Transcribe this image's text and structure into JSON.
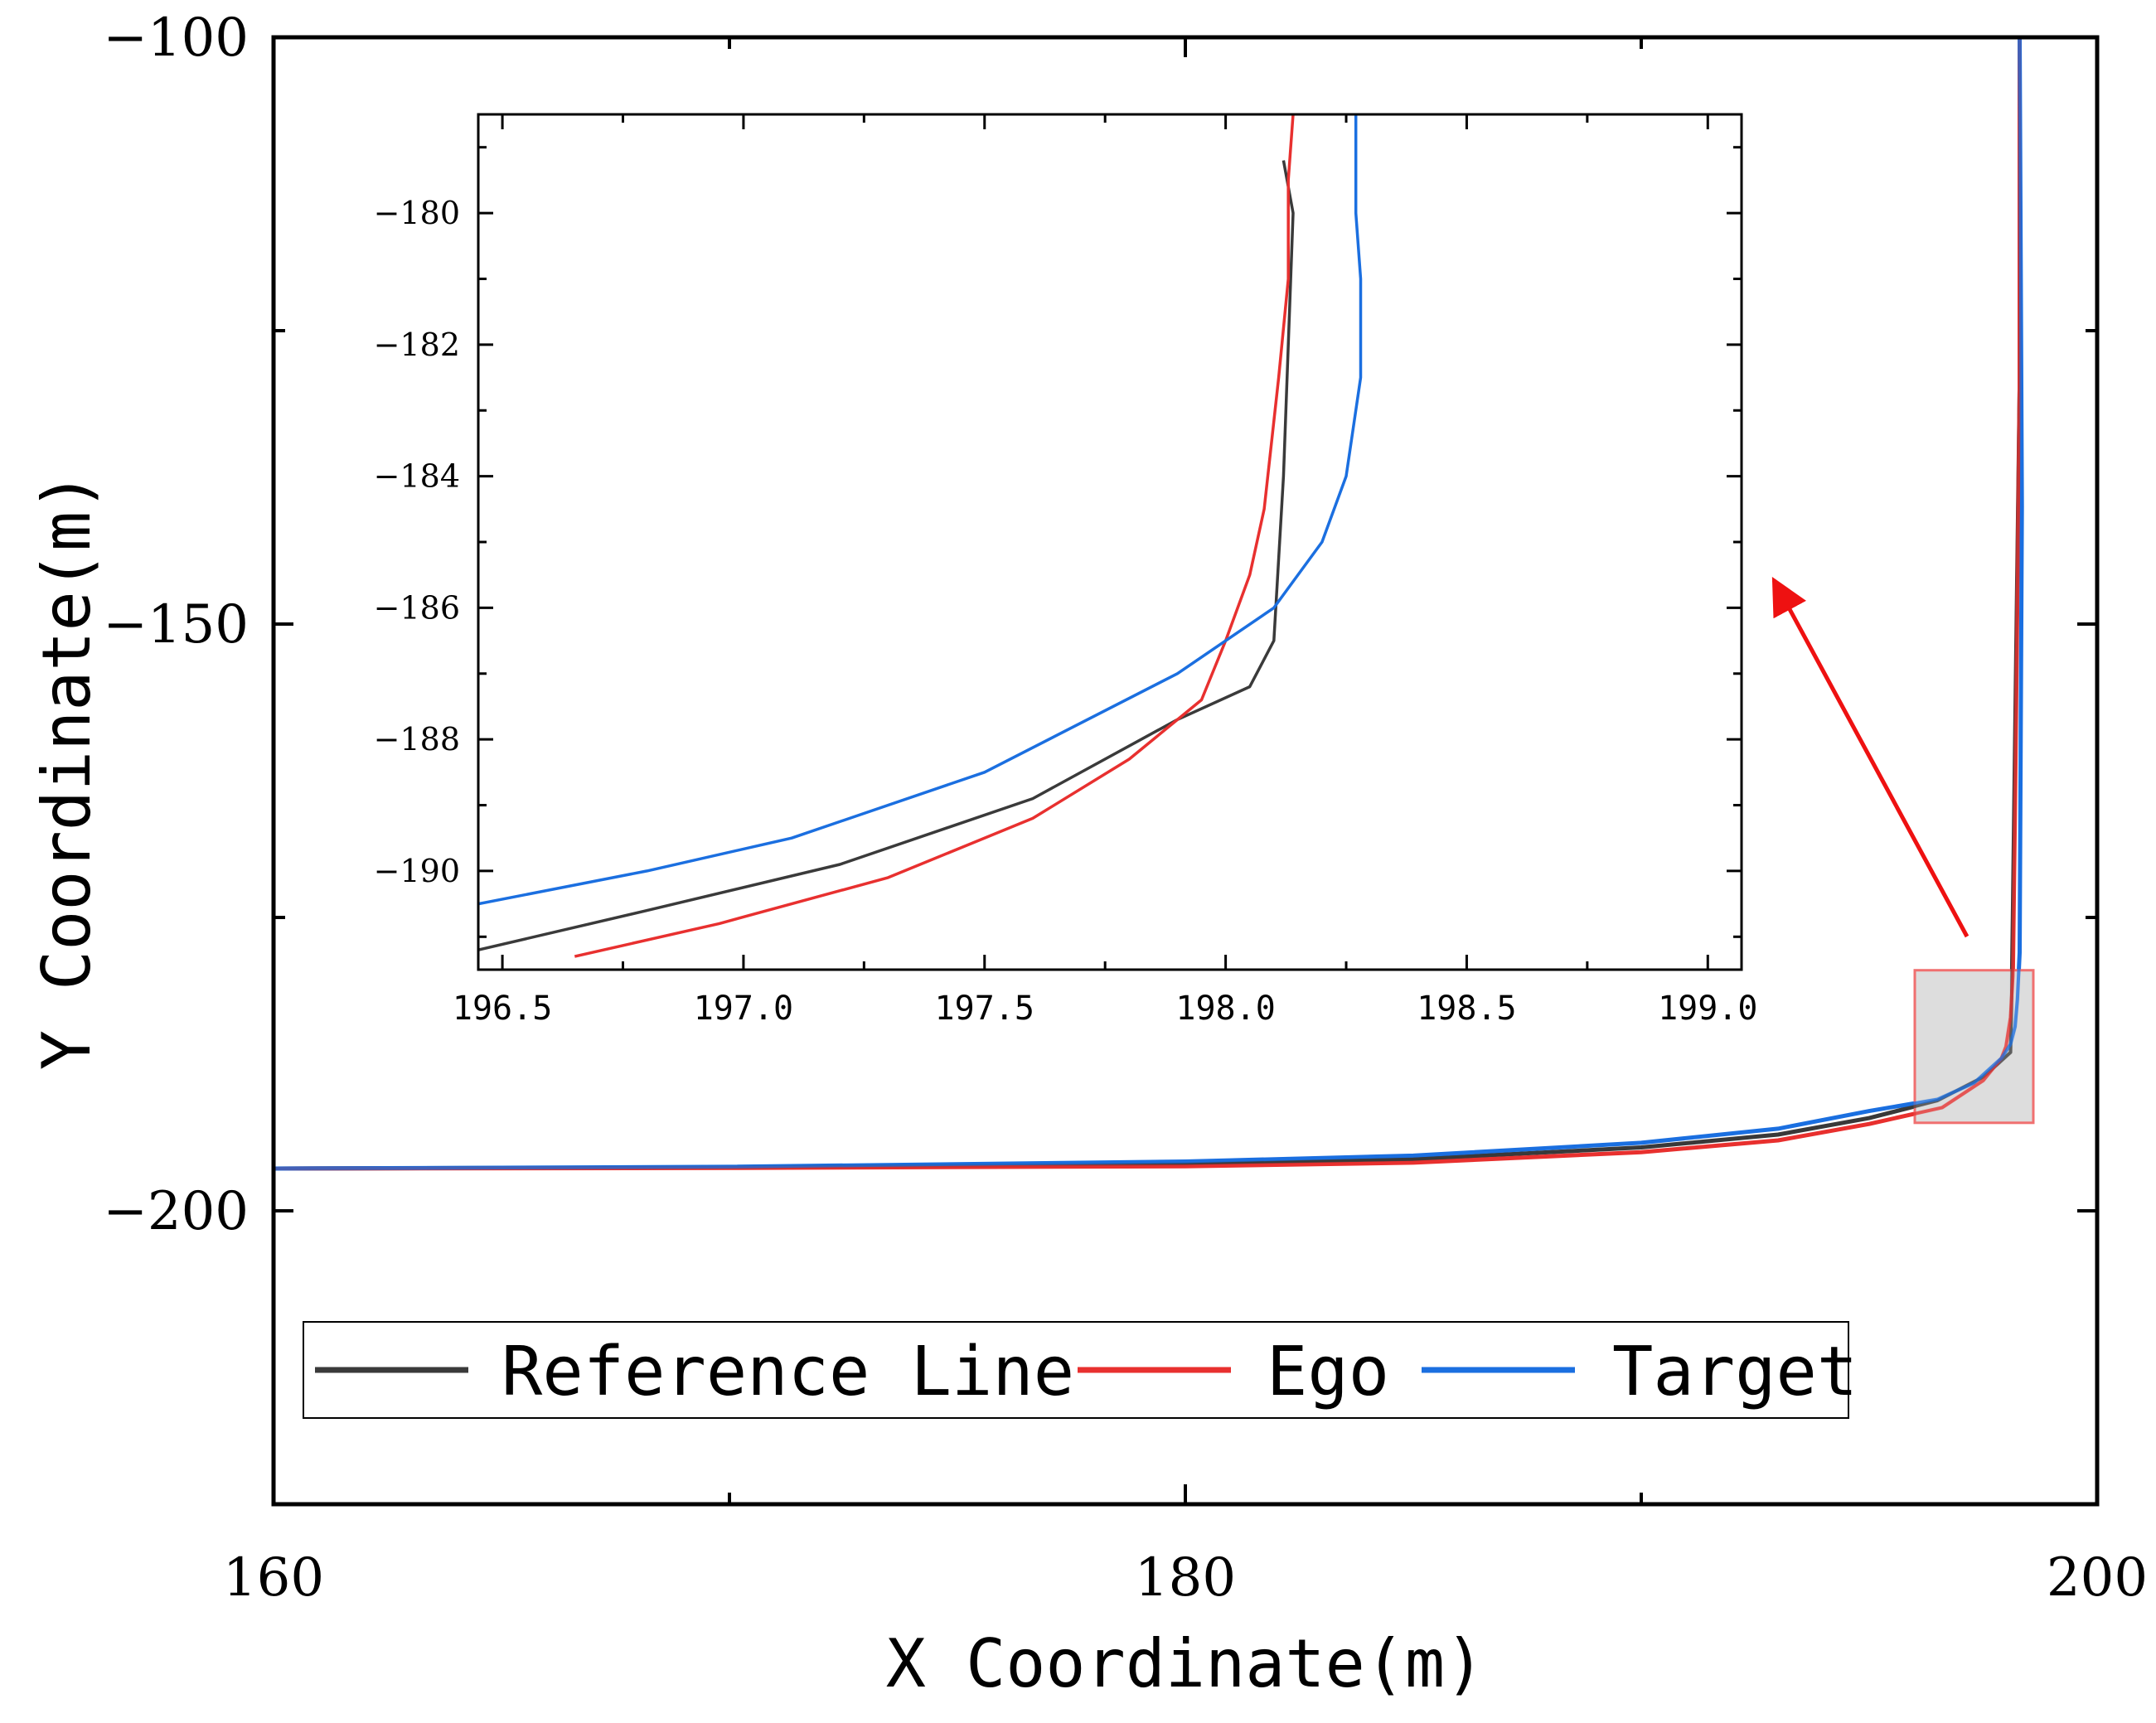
{
  "chart_data": [
    {
      "id": "main",
      "type": "line",
      "xlabel": "X Coordinate(m)",
      "ylabel": "Y Coordinate(m)",
      "xlim": [
        160,
        200
      ],
      "ylim": [
        -225,
        -100
      ],
      "xticks": [
        160,
        180,
        200
      ],
      "xticks_minor": [
        170,
        190
      ],
      "yticks": [
        -100,
        -150,
        -200
      ],
      "yticks_minor": [
        -125,
        -175
      ],
      "legend": {
        "placement": "lower-left",
        "entries": [
          "Reference Line",
          "Ego",
          "Target"
        ]
      },
      "series": [
        {
          "name": "Reference Line",
          "color": "#3a3a3a",
          "x": [
            160,
            170,
            180,
            185,
            190,
            193,
            195,
            196.5,
            197.5,
            197.9,
            198.1,
            198.13,
            198.15,
            198.2,
            198.3,
            198.3
          ],
          "y": [
            -196.4,
            -196.3,
            -196.0,
            -195.6,
            -194.6,
            -193.5,
            -192.1,
            -190.6,
            -188.6,
            -187.2,
            -186.5,
            -181,
            -175,
            -160,
            -130,
            -100
          ]
        },
        {
          "name": "Ego",
          "color": "#e8302f",
          "x": [
            160,
            170,
            180,
            185,
            190,
            193,
            195,
            196.6,
            197.5,
            197.9,
            198.0,
            198.1,
            198.15,
            198.2,
            198.3,
            198.3
          ],
          "y": [
            -196.4,
            -196.35,
            -196.2,
            -195.9,
            -195.0,
            -194.0,
            -192.6,
            -191.2,
            -188.9,
            -187.0,
            -186.0,
            -183.5,
            -180,
            -165,
            -130,
            -100
          ]
        },
        {
          "name": "Target",
          "color": "#1b6fe0",
          "x": [
            160,
            170,
            180,
            185,
            190,
            193,
            195,
            196.5,
            197.3,
            197.9,
            198.1,
            198.2,
            198.25,
            198.3,
            198.35,
            198.3
          ],
          "y": [
            -196.4,
            -196.25,
            -195.8,
            -195.3,
            -194.2,
            -193.0,
            -191.5,
            -190.5,
            -189.1,
            -187.0,
            -185.8,
            -184.3,
            -182,
            -178,
            -140,
            -100
          ]
        }
      ],
      "zoom_region": {
        "xlim": [
          196,
          198.6
        ],
        "ylim": [
          -192.5,
          -179.5
        ],
        "fill": "#d9d9d9",
        "stroke": "#f07070"
      },
      "annotation": {
        "type": "arrow",
        "color": "#ee1111",
        "from": "zoom-region",
        "to": "inset"
      }
    },
    {
      "id": "inset",
      "type": "line",
      "xlim": [
        196.45,
        199.07
      ],
      "ylim": [
        -191.5,
        -178.5
      ],
      "xticks": [
        196.5,
        197.0,
        197.5,
        198.0,
        198.5,
        199.0
      ],
      "xtick_labels": [
        "196.5",
        "197.0",
        "197.5",
        "198.0",
        "198.5",
        "199.0"
      ],
      "yticks": [
        -180,
        -182,
        -184,
        -186,
        -188,
        -190
      ],
      "series": [
        {
          "name": "Reference Line",
          "color": "#3a3a3a",
          "x": [
            196.45,
            196.8,
            197.2,
            197.6,
            197.9,
            198.05,
            198.1,
            198.12,
            198.13,
            198.14,
            198.12
          ],
          "y": [
            -191.2,
            -190.6,
            -189.9,
            -188.9,
            -187.7,
            -187.2,
            -186.5,
            -184.0,
            -182.0,
            -180.0,
            -179.2
          ]
        },
        {
          "name": "Ego",
          "color": "#e8302f",
          "x": [
            196.65,
            196.95,
            197.3,
            197.6,
            197.8,
            197.95,
            198.0,
            198.05,
            198.08,
            198.11,
            198.13,
            198.13,
            198.14
          ],
          "y": [
            -191.3,
            -190.8,
            -190.1,
            -189.2,
            -188.3,
            -187.4,
            -186.5,
            -185.5,
            -184.5,
            -182.5,
            -181.0,
            -179.5,
            -178.5
          ]
        },
        {
          "name": "Target",
          "color": "#1b6fe0",
          "x": [
            196.45,
            196.8,
            197.1,
            197.5,
            197.9,
            198.1,
            198.2,
            198.25,
            198.28,
            198.28,
            198.27,
            198.27
          ],
          "y": [
            -190.5,
            -190.0,
            -189.5,
            -188.5,
            -187.0,
            -186.0,
            -185.0,
            -184.0,
            -182.5,
            -181.0,
            -180.0,
            -178.5
          ]
        }
      ]
    }
  ]
}
